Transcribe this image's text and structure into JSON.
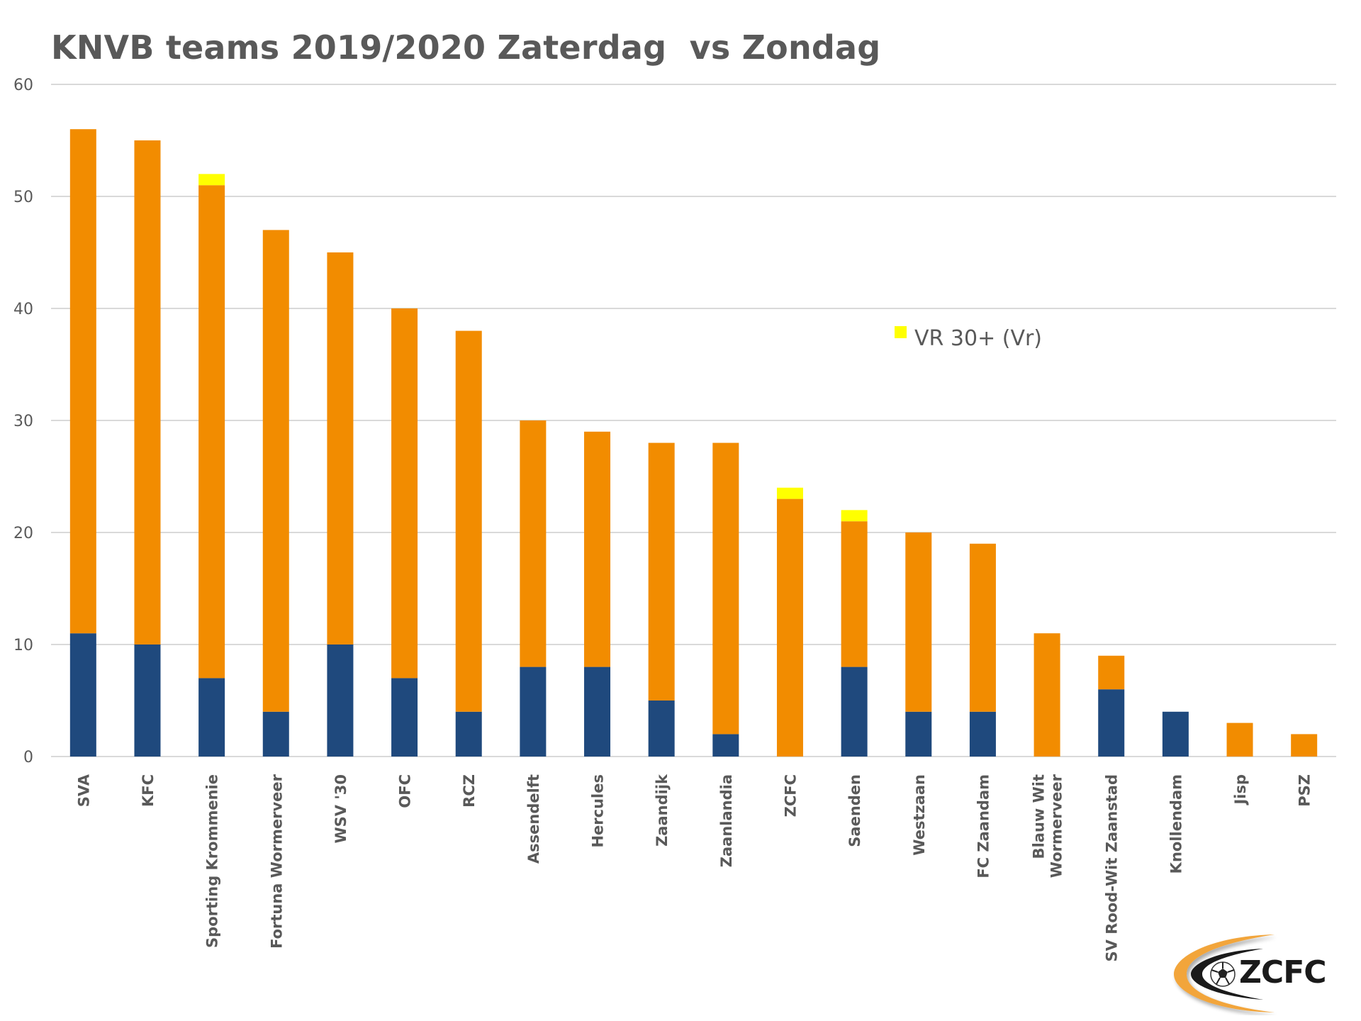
{
  "chart_data": {
    "type": "bar",
    "stacked": true,
    "title": "KNVB teams 2019/2020 Zaterdag  vs Zondag",
    "xlabel": "",
    "ylabel": "",
    "ylim": [
      0,
      60
    ],
    "yticks": [
      "0",
      "10",
      "20",
      "30",
      "40",
      "50",
      "60"
    ],
    "grid": true,
    "legend_position": "right-middle",
    "categories": [
      "SVA",
      "KFC",
      "Sporting Krommenie",
      "Fortuna Wormerveer",
      "WSV '30",
      "OFC",
      "RCZ",
      "Assendelft",
      "Hercules",
      "Zaandijk",
      "Zaanlandia",
      "ZCFC",
      "Saenden",
      "Westzaan",
      "FC Zaandam",
      "Blauw Wit\nWormerveer",
      "SV Rood-Wit Zaanstad",
      "Knollendam",
      "Jisp",
      "PSZ"
    ],
    "series": [
      {
        "name": "Zaterdag",
        "color": "#1F497D",
        "in_legend": false,
        "values": [
          11,
          10,
          7,
          4,
          10,
          7,
          4,
          8,
          8,
          5,
          2,
          0,
          8,
          4,
          4,
          0,
          6,
          4,
          0,
          0
        ]
      },
      {
        "name": "Zondag",
        "color": "#F28C00",
        "in_legend": false,
        "values": [
          45,
          45,
          44,
          43,
          35,
          33,
          34,
          22,
          21,
          23,
          26,
          23,
          13,
          16,
          15,
          11,
          3,
          0,
          3,
          2
        ]
      },
      {
        "name": "VR 30+ (Vr)",
        "color": "#FFFF00",
        "in_legend": true,
        "values": [
          0,
          0,
          1,
          0,
          0,
          0,
          0,
          0,
          0,
          0,
          0,
          1,
          1,
          0,
          0,
          0,
          0,
          0,
          0,
          0
        ]
      }
    ],
    "totals": [
      56,
      55,
      52,
      47,
      45,
      40,
      38,
      30,
      29,
      28,
      28,
      24,
      22,
      20,
      19,
      11,
      9,
      4,
      3,
      2
    ]
  },
  "legend": {
    "items": [
      {
        "label": "VR 30+ (Vr)",
        "color": "#FFFF00"
      }
    ]
  },
  "logo": {
    "text": "ZCFC",
    "accent_color": "#F2A53A"
  },
  "colors": {
    "text": "#595959",
    "grid": "#D9D9D9"
  }
}
